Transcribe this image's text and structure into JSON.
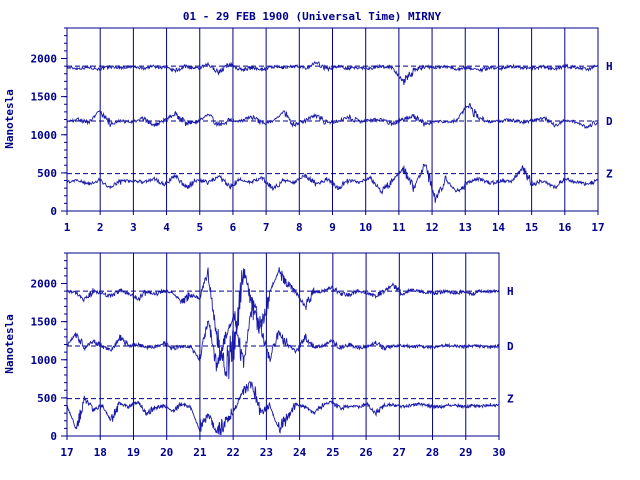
{
  "title": "01 - 29 FEB 1900 (Universal Time) MIRNY",
  "colors": {
    "ink": "#00008b",
    "trace": "#1a1aaa"
  },
  "chart_data": [
    {
      "type": "line",
      "ylabel": "Nanotesla",
      "xlim": [
        1,
        17
      ],
      "ylim": [
        0,
        2400
      ],
      "x_ticks": [
        "1",
        "2",
        "3",
        "4",
        "5",
        "6",
        "7",
        "8",
        "9",
        "10",
        "11",
        "12",
        "13",
        "14",
        "15",
        "16",
        "17"
      ],
      "y_ticks": [
        "0",
        "500",
        "1000",
        "1500",
        "2000"
      ],
      "y_tick_values": [
        0,
        500,
        1000,
        1500,
        2000
      ],
      "grid": "vertical lines at each day",
      "reference_lines": [
        1900,
        1180,
        490
      ],
      "series": [
        {
          "name": "H",
          "baseline": 1880,
          "values": [
            1880,
            1870,
            1885,
            1860,
            1890,
            1880,
            1890,
            1870,
            1900,
            1880,
            1840,
            1900,
            1860,
            1920,
            1820,
            1930,
            1850,
            1880,
            1860,
            1890,
            1880,
            1900,
            1870,
            1950,
            1860,
            1900,
            1870,
            1880,
            1870,
            1900,
            1880,
            1700,
            1850,
            1890,
            1880,
            1900,
            1860,
            1880,
            1850,
            1880,
            1870,
            1900,
            1880,
            1870,
            1890,
            1860,
            1900,
            1880,
            1860,
            1900
          ]
        },
        {
          "name": "D",
          "baseline": 1170,
          "values": [
            1170,
            1200,
            1160,
            1320,
            1150,
            1180,
            1160,
            1220,
            1120,
            1190,
            1280,
            1150,
            1170,
            1260,
            1120,
            1190,
            1180,
            1240,
            1150,
            1170,
            1300,
            1120,
            1190,
            1260,
            1150,
            1180,
            1230,
            1170,
            1190,
            1200,
            1140,
            1200,
            1250,
            1140,
            1180,
            1160,
            1190,
            1400,
            1230,
            1170,
            1180,
            1200,
            1160,
            1190,
            1220,
            1130,
            1180,
            1170,
            1090,
            1180
          ]
        },
        {
          "name": "Z",
          "baseline": 390,
          "values": [
            380,
            400,
            360,
            410,
            300,
            390,
            400,
            380,
            420,
            350,
            460,
            300,
            420,
            370,
            450,
            320,
            410,
            380,
            440,
            300,
            400,
            380,
            470,
            350,
            420,
            300,
            400,
            380,
            430,
            260,
            390,
            560,
            300,
            620,
            150,
            400,
            250,
            380,
            420,
            360,
            400,
            380,
            560,
            350,
            400,
            300,
            420,
            380,
            350,
            400
          ]
        }
      ],
      "series_labels": [
        "H",
        "D",
        "Z"
      ]
    },
    {
      "type": "line",
      "ylabel": "Nanotesla",
      "xlim": [
        17,
        30
      ],
      "ylim": [
        0,
        2400
      ],
      "x_ticks": [
        "17",
        "18",
        "19",
        "20",
        "21",
        "22",
        "23",
        "24",
        "25",
        "26",
        "27",
        "28",
        "29",
        "30"
      ],
      "y_ticks": [
        "0",
        "500",
        "1000",
        "1500",
        "2000"
      ],
      "y_tick_values": [
        0,
        500,
        1000,
        1500,
        2000
      ],
      "grid": "vertical lines at each day",
      "reference_lines": [
        1900,
        1180,
        490
      ],
      "series": [
        {
          "name": "H",
          "baseline": 1900,
          "values": [
            1900,
            1880,
            1780,
            1900,
            1870,
            1830,
            1910,
            1870,
            1800,
            1890,
            1860,
            1900,
            1880,
            1750,
            1860,
            1800,
            2150,
            1300,
            900,
            1200,
            2200,
            1700,
            1400,
            1900,
            2150,
            2000,
            1880,
            1700,
            1880,
            1900,
            1950,
            1870,
            1850,
            1900,
            1880,
            1830,
            1900,
            1990,
            1860,
            1920,
            1900,
            1870,
            1880,
            1900,
            1870,
            1900,
            1860,
            1900,
            1890,
            1900
          ]
        },
        {
          "name": "D",
          "baseline": 1180,
          "values": [
            1180,
            1350,
            1150,
            1250,
            1170,
            1120,
            1300,
            1180,
            1200,
            1160,
            1170,
            1220,
            1150,
            1180,
            1170,
            1000,
            1500,
            900,
            1300,
            1600,
            900,
            1700,
            1400,
            1000,
            1350,
            1200,
            1100,
            1300,
            1170,
            1180,
            1250,
            1150,
            1200,
            1160,
            1170,
            1230,
            1150,
            1180,
            1190,
            1170,
            1180,
            1160,
            1170,
            1190,
            1180,
            1170,
            1180,
            1175,
            1170,
            1180
          ]
        },
        {
          "name": "Z",
          "baseline": 400,
          "values": [
            400,
            100,
            480,
            350,
            400,
            200,
            420,
            380,
            450,
            300,
            370,
            400,
            320,
            420,
            380,
            100,
            300,
            30,
            200,
            350,
            600,
            700,
            300,
            400,
            100,
            250,
            420,
            380,
            300,
            400,
            450,
            360,
            400,
            380,
            420,
            300,
            400,
            410,
            380,
            400,
            420,
            390,
            380,
            400,
            410,
            380,
            400,
            390,
            410,
            400
          ]
        }
      ],
      "series_labels": [
        "H",
        "D",
        "Z"
      ]
    }
  ]
}
